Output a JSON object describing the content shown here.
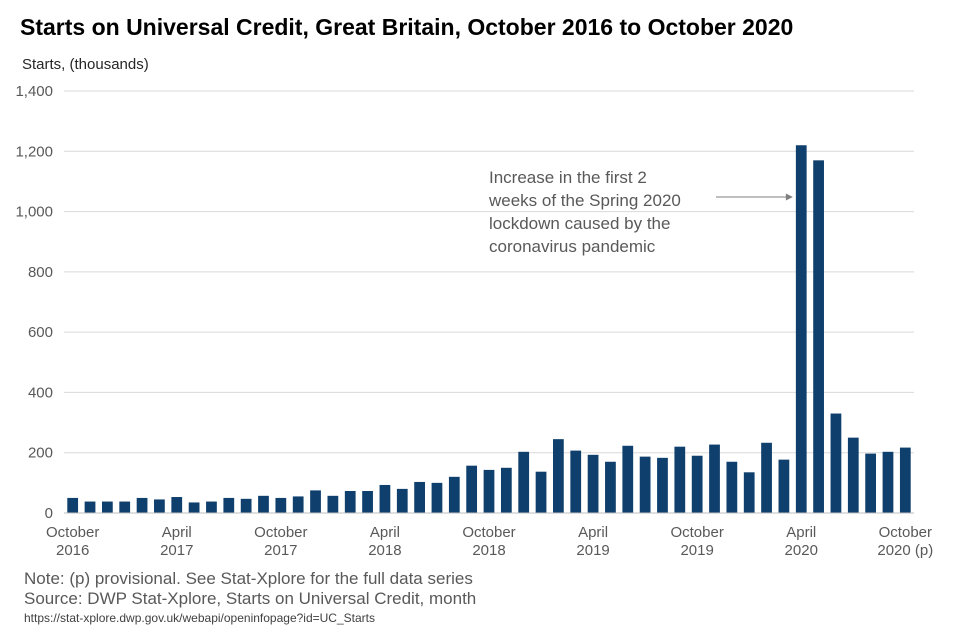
{
  "chart_data": {
    "type": "bar",
    "title": "Starts on Universal Credit, Great Britain, October 2016 to October 2020",
    "ylabel": "Starts, (thousands)",
    "xlabel": "",
    "ylim": [
      0,
      1400
    ],
    "yticks": [
      "0",
      "200",
      "400",
      "600",
      "800",
      "1,000",
      "1,200",
      "1,400"
    ],
    "ytick_values": [
      0,
      200,
      400,
      600,
      800,
      1000,
      1200,
      1400
    ],
    "grid": true,
    "bar_color": "#0f3f6c",
    "categories": [
      "Oct 2016",
      "Nov 2016",
      "Dec 2016",
      "Jan 2017",
      "Feb 2017",
      "Mar 2017",
      "Apr 2017",
      "May 2017",
      "Jun 2017",
      "Jul 2017",
      "Aug 2017",
      "Sep 2017",
      "Oct 2017",
      "Nov 2017",
      "Dec 2017",
      "Jan 2018",
      "Feb 2018",
      "Mar 2018",
      "Apr 2018",
      "May 2018",
      "Jun 2018",
      "Jul 2018",
      "Aug 2018",
      "Sep 2018",
      "Oct 2018",
      "Nov 2018",
      "Dec 2018",
      "Jan 2019",
      "Feb 2019",
      "Mar 2019",
      "Apr 2019",
      "May 2019",
      "Jun 2019",
      "Jul 2019",
      "Aug 2019",
      "Sep 2019",
      "Oct 2019",
      "Nov 2019",
      "Dec 2019",
      "Jan 2020",
      "Feb 2020",
      "Mar 2020",
      "Apr 2020",
      "May 2020",
      "Jun 2020",
      "Jul 2020",
      "Aug 2020",
      "Sep 2020",
      "Oct 2020 (p)"
    ],
    "values": [
      50,
      38,
      38,
      38,
      50,
      45,
      53,
      35,
      38,
      50,
      47,
      57,
      50,
      55,
      75,
      57,
      73,
      73,
      93,
      80,
      103,
      100,
      120,
      157,
      143,
      150,
      203,
      137,
      245,
      207,
      193,
      170,
      223,
      187,
      183,
      220,
      190,
      227,
      170,
      135,
      233,
      177,
      1220,
      1170,
      330,
      250,
      197,
      203,
      217
    ],
    "xtick_labels": [
      {
        "index": 0,
        "line1": "October",
        "line2": "2016"
      },
      {
        "index": 6,
        "line1": "April",
        "line2": "2017"
      },
      {
        "index": 12,
        "line1": "October",
        "line2": "2017"
      },
      {
        "index": 18,
        "line1": "April",
        "line2": "2018"
      },
      {
        "index": 24,
        "line1": "October",
        "line2": "2018"
      },
      {
        "index": 30,
        "line1": "April",
        "line2": "2019"
      },
      {
        "index": 36,
        "line1": "October",
        "line2": "2019"
      },
      {
        "index": 42,
        "line1": "April",
        "line2": "2020"
      },
      {
        "index": 48,
        "line1": "October",
        "line2": "2020 (p)"
      }
    ],
    "annotation": {
      "lines": [
        "Increase in the first 2",
        "weeks of the Spring 2020",
        "lockdown caused by the",
        "coronavirus pandemic"
      ],
      "target_index": 42
    }
  },
  "notes": {
    "line1": "Note: (p) provisional. See Stat-Xplore for the full data series",
    "line2": "Source: DWP Stat-Xplore, Starts on Universal Credit, month",
    "url": "https://stat-xplore.dwp.gov.uk/webapi/openinfopage?id=UC_Starts"
  }
}
